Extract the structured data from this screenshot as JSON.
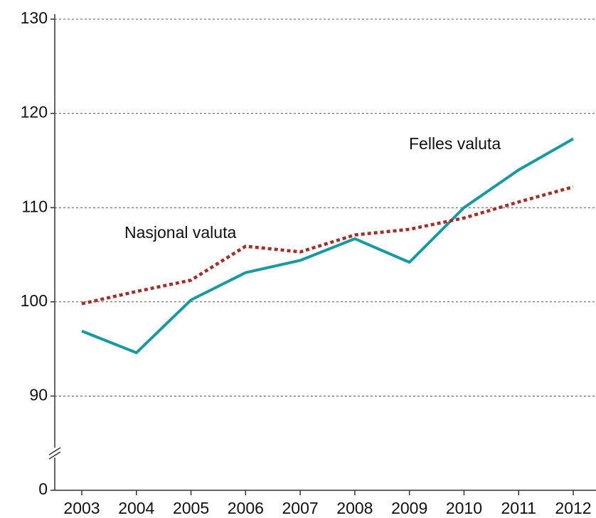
{
  "chart_data": {
    "type": "line",
    "categories": [
      "2003",
      "2004",
      "2005",
      "2006",
      "2007",
      "2008",
      "2009",
      "2010",
      "2011",
      "2012"
    ],
    "series": [
      {
        "name": "Felles valuta",
        "color": "#1a9aa0",
        "dash": false,
        "values": [
          96.9,
          94.6,
          100.2,
          103.1,
          104.4,
          106.7,
          104.2,
          110.0,
          114.0,
          117.3
        ]
      },
      {
        "name": "Nasjonal valuta",
        "color": "#a0302a",
        "dash": true,
        "values": [
          99.8,
          101.1,
          102.3,
          105.9,
          105.3,
          107.1,
          107.7,
          108.9,
          110.6,
          112.2
        ]
      }
    ],
    "ylim": [
      0,
      130
    ],
    "yticks": [
      0,
      90,
      100,
      110,
      120,
      130
    ],
    "y_axis_break": [
      0,
      90
    ],
    "grid": true
  }
}
